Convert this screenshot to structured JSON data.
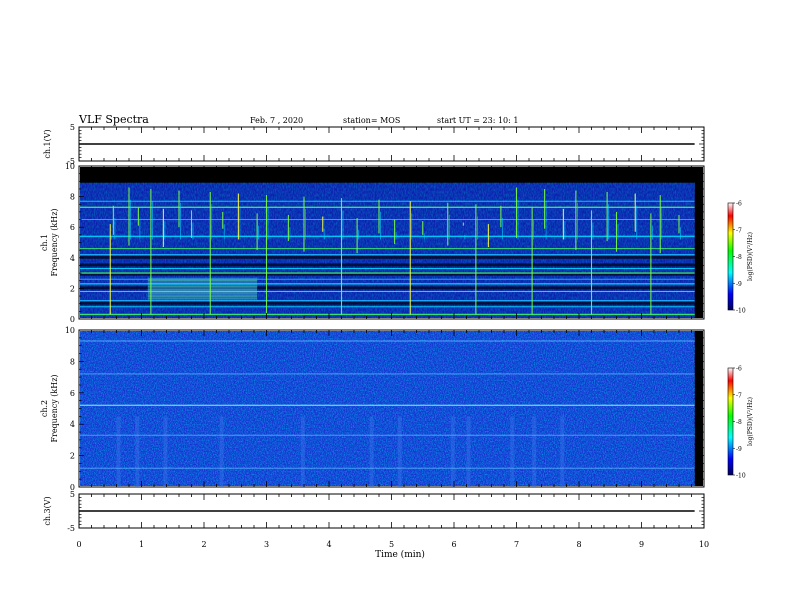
{
  "header": {
    "title": "VLF Spectra",
    "date": "Feb. 7  , 2020",
    "station": "station= MOS",
    "start_ut": "start  UT  =   23: 10: 1"
  },
  "colors": {
    "background": "#000000",
    "spectrogram_low": "#1a2fd0",
    "spectrogram_mid": "#00c8ff",
    "spectrogram_high": "#40ff40",
    "trace": "#000000"
  },
  "chart_data": [
    {
      "type": "line",
      "ylabel": "ch.1(V)",
      "ylim": [
        -5,
        5
      ],
      "y_ticks": [
        "5",
        "-5"
      ],
      "x_range": [
        0,
        10
      ],
      "series": [
        {
          "x": [
            0,
            9.85
          ],
          "y": [
            0,
            0
          ]
        }
      ]
    },
    {
      "type": "heatmap",
      "ylabel": "ch.1\nFrequency (kHz)",
      "ylabel_lines": [
        "ch.1",
        "Frequency (kHz)"
      ],
      "ylim": [
        0,
        10
      ],
      "y_ticks": [
        "0",
        "2",
        "4",
        "6",
        "8",
        "10"
      ],
      "x_range": [
        0,
        10
      ],
      "data_extent_min": 9.85,
      "colorbar": {
        "label": "log(PSD)(V²/Hz)",
        "range": [
          -10,
          -6
        ],
        "ticks": [
          "-6",
          "-7",
          "-8",
          "-9",
          "-10"
        ]
      },
      "emission_lines_khz": [
        0.3,
        0.8,
        1.2,
        1.8,
        2.3,
        2.6,
        3.0,
        3.3,
        4.2,
        4.6,
        5.4,
        6.5,
        7.3,
        7.7
      ],
      "enhanced_band": {
        "t_range": [
          1.1,
          2.85
        ],
        "f_range": [
          1.3,
          2.7
        ]
      },
      "noise_floor_top_khz": 8.9,
      "spikes_min": [
        0.5,
        0.55,
        0.8,
        0.95,
        1.15,
        1.35,
        1.6,
        1.8,
        2.1,
        2.3,
        2.55,
        2.85,
        3.0,
        3.35,
        3.6,
        3.9,
        4.2,
        4.45,
        4.8,
        5.05,
        5.3,
        5.5,
        5.9,
        6.15,
        6.35,
        6.55,
        6.75,
        7.0,
        7.25,
        7.45,
        7.75,
        7.95,
        8.2,
        8.45,
        8.6,
        8.9,
        9.15,
        9.3,
        9.6
      ]
    },
    {
      "type": "heatmap",
      "ylabel": "ch.2\nFrequency (kHz)",
      "ylabel_lines": [
        "ch.2",
        "Frequency (kHz)"
      ],
      "ylim": [
        0,
        10
      ],
      "y_ticks": [
        "0",
        "2",
        "4",
        "6",
        "8",
        "10"
      ],
      "x_range": [
        0,
        10
      ],
      "data_extent_min": 9.85,
      "colorbar": {
        "label": "log(PSD)(V²/Hz)",
        "range": [
          -10,
          -6
        ],
        "ticks": [
          "-6",
          "-7",
          "-8",
          "-9",
          "-10"
        ]
      },
      "emission_lines_khz": [
        1.2,
        3.3,
        5.2,
        7.2,
        9.3
      ]
    },
    {
      "type": "line",
      "ylabel": "ch.3(V)",
      "ylim": [
        -5,
        5
      ],
      "y_ticks": [
        "5",
        "-5"
      ],
      "xlabel": "Time  (min)",
      "x_range": [
        0,
        10
      ],
      "x_ticks": [
        "0",
        "1",
        "2",
        "3",
        "4",
        "5",
        "6",
        "7",
        "8",
        "9",
        "10"
      ],
      "series": [
        {
          "x": [
            0,
            9.85
          ],
          "y": [
            0,
            0
          ]
        }
      ]
    }
  ]
}
